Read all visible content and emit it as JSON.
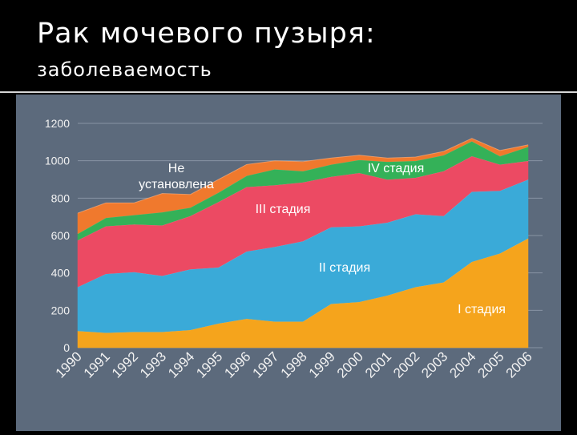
{
  "header": {
    "title": "Рак мочевого пузыря:",
    "subtitle": "заболеваемость"
  },
  "colors": {
    "panel_bg": "#5c6a7c",
    "stage1": "#f5a41c",
    "stage2": "#3aaad8",
    "stage3": "#ec4a63",
    "stage4": "#34b158",
    "unknown": "#f0792d"
  },
  "chart_data": {
    "type": "area",
    "stacked": true,
    "title": "",
    "xlabel": "",
    "ylabel": "",
    "ylim": [
      0,
      1200
    ],
    "yticks": [
      0,
      200,
      400,
      600,
      800,
      1000,
      1200
    ],
    "grid": true,
    "legend": "inline labels",
    "x": [
      "1990",
      "1991",
      "1992",
      "1993",
      "1994",
      "1995",
      "1996",
      "1997",
      "1998",
      "1999",
      "2000",
      "2001",
      "2002",
      "2003",
      "2004",
      "2005",
      "2006"
    ],
    "series": [
      {
        "name": "I стадия",
        "color": "#f5a41c",
        "values": [
          90,
          80,
          85,
          85,
          95,
          130,
          155,
          140,
          140,
          235,
          245,
          280,
          325,
          350,
          460,
          505,
          585
        ]
      },
      {
        "name": "II стадия",
        "color": "#3aaad8",
        "values": [
          235,
          315,
          320,
          300,
          325,
          300,
          360,
          400,
          430,
          410,
          405,
          390,
          390,
          355,
          375,
          335,
          315
        ]
      },
      {
        "name": "III стадия",
        "color": "#ec4a63",
        "values": [
          250,
          255,
          255,
          270,
          285,
          350,
          345,
          330,
          315,
          270,
          285,
          230,
          195,
          240,
          190,
          140,
          100
        ]
      },
      {
        "name": "IV стадия",
        "color": "#34b158",
        "values": [
          35,
          45,
          50,
          70,
          45,
          50,
          60,
          85,
          60,
          65,
          70,
          95,
          90,
          85,
          80,
          45,
          75
        ]
      },
      {
        "name": "Не установлена",
        "color": "#f0792d",
        "values": [
          110,
          80,
          65,
          100,
          70,
          70,
          60,
          45,
          50,
          35,
          25,
          20,
          20,
          20,
          15,
          30,
          10
        ]
      }
    ],
    "annotations": [
      {
        "label": "Не",
        "series": "Не установлена"
      },
      {
        "label": "установлена",
        "series": "Не установлена"
      },
      {
        "label": "IV стадия",
        "series": "IV стадия"
      },
      {
        "label": "III стадия",
        "series": "III стадия"
      },
      {
        "label": "II стадия",
        "series": "II стадия"
      },
      {
        "label": "I стадия",
        "series": "I стадия"
      }
    ]
  }
}
